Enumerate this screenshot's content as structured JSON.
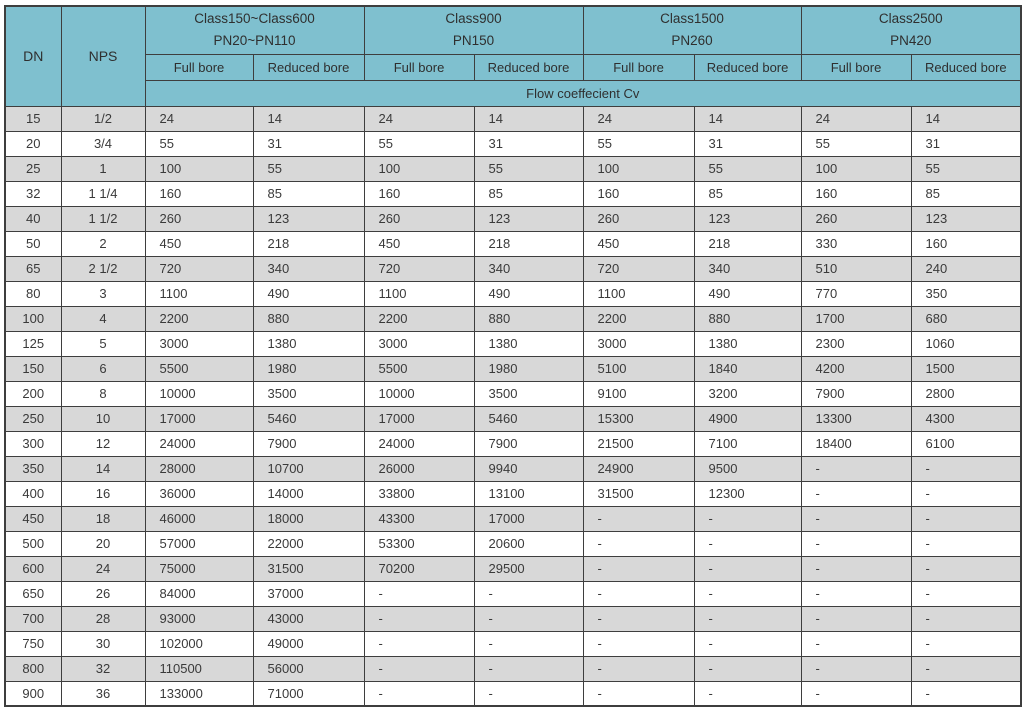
{
  "table": {
    "header": {
      "dn": "DN",
      "nps": "NPS",
      "class_groups": [
        {
          "class_label": "Class150~Class600",
          "pn_label": "PN20~PN110"
        },
        {
          "class_label": "Class900",
          "pn_label": "PN150"
        },
        {
          "class_label": "Class1500",
          "pn_label": "PN260"
        },
        {
          "class_label": "Class2500",
          "pn_label": "PN420"
        }
      ],
      "bore": [
        "Full bore",
        "Reduced bore"
      ],
      "span_label": "Flow coeffecient Cv"
    },
    "rows": [
      {
        "dn": "15",
        "nps": "1/2",
        "values": [
          "24",
          "14",
          "24",
          "14",
          "24",
          "14",
          "24",
          "14"
        ]
      },
      {
        "dn": "20",
        "nps": "3/4",
        "values": [
          "55",
          "31",
          "55",
          "31",
          "55",
          "31",
          "55",
          "31"
        ]
      },
      {
        "dn": "25",
        "nps": "1",
        "values": [
          "100",
          "55",
          "100",
          "55",
          "100",
          "55",
          "100",
          "55"
        ]
      },
      {
        "dn": "32",
        "nps": "1 1/4",
        "values": [
          "160",
          "85",
          "160",
          "85",
          "160",
          "85",
          "160",
          "85"
        ]
      },
      {
        "dn": "40",
        "nps": "1 1/2",
        "values": [
          "260",
          "123",
          "260",
          "123",
          "260",
          "123",
          "260",
          "123"
        ]
      },
      {
        "dn": "50",
        "nps": "2",
        "values": [
          "450",
          "218",
          "450",
          "218",
          "450",
          "218",
          "330",
          "160"
        ]
      },
      {
        "dn": "65",
        "nps": "2 1/2",
        "values": [
          "720",
          "340",
          "720",
          "340",
          "720",
          "340",
          "510",
          "240"
        ]
      },
      {
        "dn": "80",
        "nps": "3",
        "values": [
          "1100",
          "490",
          "1100",
          "490",
          "1100",
          "490",
          "770",
          "350"
        ]
      },
      {
        "dn": "100",
        "nps": "4",
        "values": [
          "2200",
          "880",
          "2200",
          "880",
          "2200",
          "880",
          "1700",
          "680"
        ]
      },
      {
        "dn": "125",
        "nps": "5",
        "values": [
          "3000",
          "1380",
          "3000",
          "1380",
          "3000",
          "1380",
          "2300",
          "1060"
        ]
      },
      {
        "dn": "150",
        "nps": "6",
        "values": [
          "5500",
          "1980",
          "5500",
          "1980",
          "5100",
          "1840",
          "4200",
          "1500"
        ]
      },
      {
        "dn": "200",
        "nps": "8",
        "values": [
          "10000",
          "3500",
          "10000",
          "3500",
          "9100",
          "3200",
          "7900",
          "2800"
        ]
      },
      {
        "dn": "250",
        "nps": "10",
        "values": [
          "17000",
          "5460",
          "17000",
          "5460",
          "15300",
          "4900",
          "13300",
          "4300"
        ]
      },
      {
        "dn": "300",
        "nps": "12",
        "values": [
          "24000",
          "7900",
          "24000",
          "7900",
          "21500",
          "7100",
          "18400",
          "6100"
        ]
      },
      {
        "dn": "350",
        "nps": "14",
        "values": [
          "28000",
          "10700",
          "26000",
          "9940",
          "24900",
          "9500",
          "-",
          "-"
        ]
      },
      {
        "dn": "400",
        "nps": "16",
        "values": [
          "36000",
          "14000",
          "33800",
          "13100",
          "31500",
          "12300",
          "-",
          "-"
        ]
      },
      {
        "dn": "450",
        "nps": "18",
        "values": [
          "46000",
          "18000",
          "43300",
          "17000",
          "-",
          "-",
          "-",
          "-"
        ]
      },
      {
        "dn": "500",
        "nps": "20",
        "values": [
          "57000",
          "22000",
          "53300",
          "20600",
          "-",
          "-",
          "-",
          "-"
        ]
      },
      {
        "dn": "600",
        "nps": "24",
        "values": [
          "75000",
          "31500",
          "70200",
          "29500",
          "-",
          "-",
          "-",
          "-"
        ]
      },
      {
        "dn": "650",
        "nps": "26",
        "values": [
          "84000",
          "37000",
          "-",
          "-",
          "-",
          "-",
          "-",
          "-"
        ]
      },
      {
        "dn": "700",
        "nps": "28",
        "values": [
          "93000",
          "43000",
          "-",
          "-",
          "-",
          "-",
          "-",
          "-"
        ]
      },
      {
        "dn": "750",
        "nps": "30",
        "values": [
          "102000",
          "49000",
          "-",
          "-",
          "-",
          "-",
          "-",
          "-"
        ]
      },
      {
        "dn": "800",
        "nps": "32",
        "values": [
          "110500",
          "56000",
          "-",
          "-",
          "-",
          "-",
          "-",
          "-"
        ]
      },
      {
        "dn": "900",
        "nps": "36",
        "values": [
          "133000",
          "71000",
          "-",
          "-",
          "-",
          "-",
          "-",
          "-"
        ]
      }
    ]
  },
  "colors": {
    "header_bg": "#7fc0cf",
    "row_stripe": "#d8d8d8",
    "row_white": "#ffffff",
    "border": "#3e3e3e",
    "text": "#383838"
  }
}
